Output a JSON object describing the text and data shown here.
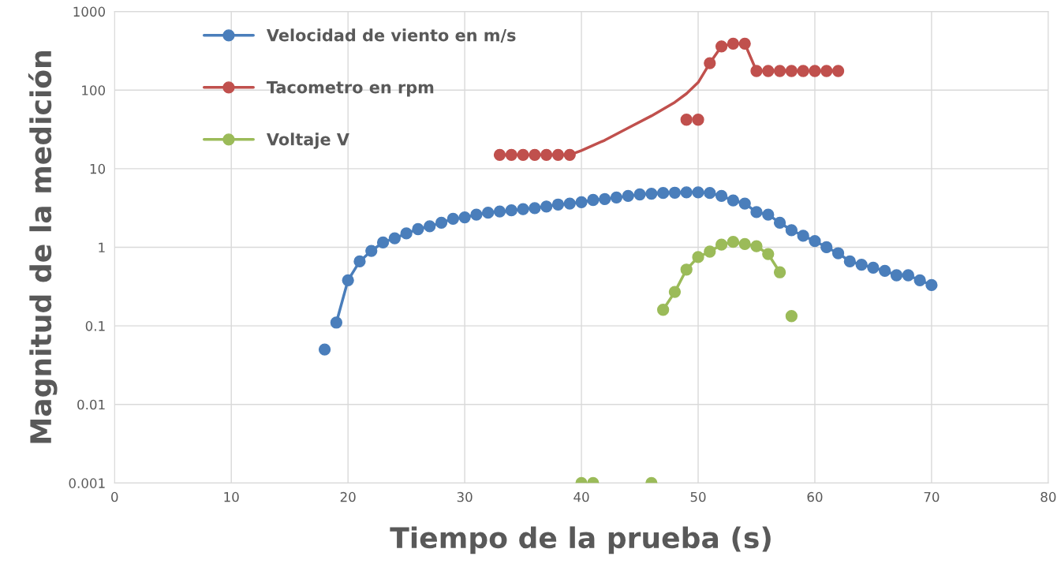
{
  "chart_data": {
    "type": "line",
    "xlabel": "Tiempo de la prueba (s)",
    "ylabel": "Magnitud de la medición",
    "log": "y",
    "grid": true,
    "legend": "top left",
    "marker": "circle",
    "line_style": "solid",
    "xlim": [
      0,
      80
    ],
    "xticks": [
      0,
      10,
      20,
      30,
      40,
      50,
      60,
      70,
      80
    ],
    "ylim": [
      0.001,
      1000
    ],
    "yticks": [
      {
        "value": 0.001,
        "label": "0.001"
      },
      {
        "value": 0.01,
        "label": "0.01"
      },
      {
        "value": 0.1,
        "label": "0.1"
      },
      {
        "value": 1,
        "label": "1"
      },
      {
        "value": 10,
        "label": "10"
      },
      {
        "value": 100,
        "label": "100"
      },
      {
        "value": 1000,
        "label": "1000"
      }
    ],
    "series": [
      {
        "name": "Velocidad de viento en m/s",
        "color": "#4a7ebb",
        "x": [
          18,
          18.5,
          19,
          20,
          21,
          22,
          23,
          24,
          25,
          26,
          27,
          28,
          29,
          30,
          31,
          32,
          33,
          34,
          35,
          36,
          37,
          38,
          39,
          40,
          41,
          42,
          43,
          44,
          45,
          46,
          47,
          48,
          49,
          50,
          51,
          52,
          53,
          54,
          55,
          56,
          57,
          58,
          59,
          60,
          61,
          62,
          63,
          64,
          65,
          66,
          67,
          68,
          69,
          70
        ],
        "values": [
          0.05,
          null,
          0.11,
          0.38,
          0.66,
          0.9,
          1.15,
          1.3,
          1.5,
          1.7,
          1.85,
          2.05,
          2.3,
          2.4,
          2.6,
          2.75,
          2.85,
          2.95,
          3.05,
          3.15,
          3.3,
          3.5,
          3.6,
          3.75,
          4.0,
          4.1,
          4.3,
          4.5,
          4.7,
          4.8,
          4.9,
          4.95,
          5.0,
          5.0,
          4.9,
          4.5,
          3.95,
          3.6,
          2.8,
          2.6,
          2.05,
          1.65,
          1.4,
          1.2,
          1.0,
          0.84,
          0.66,
          0.6,
          0.55,
          0.5,
          0.44,
          0.44,
          0.38,
          0.33
        ]
      },
      {
        "name": "Tacometro en rpm",
        "color": "#c0504d",
        "x": [
          33,
          34,
          35,
          36,
          37,
          38,
          39,
          44,
          49,
          49.5,
          50,
          50.5,
          51,
          52,
          53,
          54,
          55,
          56,
          57,
          58,
          59,
          60,
          61,
          62
        ],
        "values": [
          15,
          15,
          15,
          15,
          15,
          15,
          15,
          null,
          42,
          null,
          42,
          null,
          220,
          360,
          390,
          390,
          175,
          175,
          175,
          175,
          175,
          175,
          175,
          175
        ]
      },
      {
        "color": "#c0504d",
        "marker": "none",
        "x": [
          39,
          40,
          42,
          44,
          46,
          48,
          49,
          50,
          51
        ],
        "values": [
          15,
          17,
          23,
          33,
          47,
          70,
          90,
          125,
          220
        ]
      },
      {
        "name": "Voltaje V",
        "color": "#9bbb59",
        "x": [
          40,
          40.5,
          41,
          43,
          46,
          46.5,
          47,
          48,
          49,
          50,
          51,
          52,
          53,
          54,
          55,
          56,
          57,
          57.5,
          58
        ],
        "values": [
          0.001,
          null,
          0.001,
          null,
          0.001,
          null,
          0.16,
          0.27,
          0.52,
          0.75,
          0.88,
          1.08,
          1.17,
          1.1,
          1.03,
          0.82,
          0.48,
          null,
          0.133
        ]
      }
    ]
  }
}
